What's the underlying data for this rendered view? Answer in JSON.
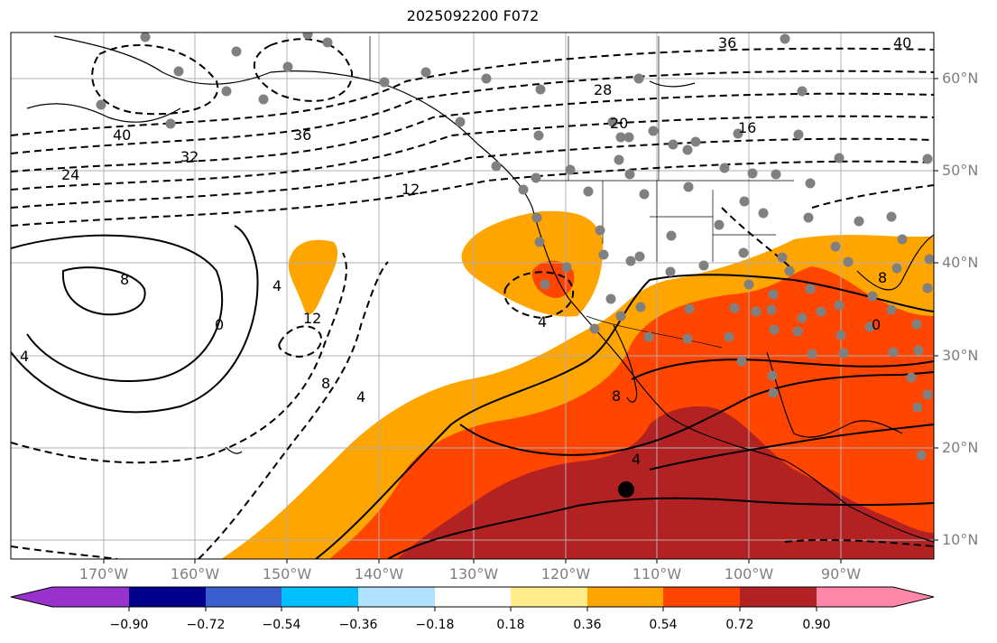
{
  "title": "2025092200 F072",
  "map": {
    "lat_labels": [
      "60°N",
      "50°N",
      "40°N",
      "30°N",
      "20°N",
      "10°N"
    ],
    "lon_labels": [
      "170°W",
      "160°W",
      "150°W",
      "140°W",
      "130°W",
      "120°W",
      "110°W",
      "100°W",
      "90°W"
    ],
    "contour_labels": [
      "36",
      "40",
      "28",
      "20",
      "16",
      "40",
      "32",
      "24",
      "36",
      "12",
      "8",
      "0",
      "4",
      "4",
      "12",
      "8",
      "4",
      "4",
      "8",
      "4",
      "8",
      "0"
    ],
    "storm_marker": "tropical-cyclone-center-icon",
    "fill_colors": {
      "orange": "#ffa500",
      "red_orange": "#ff4500",
      "dark_red": "#b22222",
      "land_ocean": "#ffffff",
      "station_dot": "#808080"
    }
  },
  "colorbar": {
    "tick_labels": [
      "−0.90",
      "−0.72",
      "−0.54",
      "−0.36",
      "−0.18",
      "0.18",
      "0.36",
      "0.54",
      "0.72",
      "0.90"
    ],
    "colors": [
      "#9932cc",
      "#00008b",
      "#3a5fcd",
      "#00bfff",
      "#b0e2ff",
      "#ffffff",
      "#ffec8b",
      "#ffa500",
      "#ff4500",
      "#b22222",
      "#ff88aa"
    ]
  }
}
